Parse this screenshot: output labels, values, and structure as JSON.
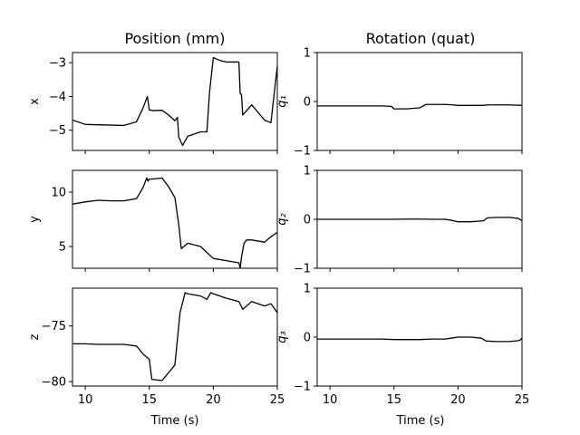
{
  "titles": {
    "left": "Position (mm)",
    "right": "Rotation (quat)"
  },
  "xlabel": "Time (s)",
  "line_color": "#000000",
  "chart_data": [
    {
      "type": "line",
      "panel": "x",
      "ylabel": "x",
      "xlim": [
        9,
        25
      ],
      "ylim": [
        -5.6,
        -2.7
      ],
      "xticks": [
        10,
        15,
        20,
        25
      ],
      "yticks": [
        -5,
        -4,
        -3
      ],
      "ytick_labels": [
        "−5",
        "−4",
        "−3"
      ],
      "show_xtick_labels": false,
      "x": [
        9,
        10,
        11,
        12,
        13,
        14,
        14.5,
        14.85,
        15,
        15.3,
        16,
        16.5,
        17,
        17.2,
        17.3,
        17.6,
        18,
        19,
        19.5,
        19.7,
        20,
        20.5,
        21,
        22,
        22.1,
        22.2,
        22.3,
        23,
        24,
        24.5,
        25
      ],
      "y": [
        -4.7,
        -4.83,
        -4.84,
        -4.85,
        -4.86,
        -4.75,
        -4.35,
        -4.0,
        -4.4,
        -4.42,
        -4.41,
        -4.55,
        -4.72,
        -4.62,
        -5.2,
        -5.45,
        -5.18,
        -5.05,
        -5.05,
        -3.9,
        -2.85,
        -2.93,
        -2.98,
        -2.98,
        -3.92,
        -3.94,
        -4.55,
        -4.25,
        -4.7,
        -4.78,
        -3.1
      ]
    },
    {
      "type": "line",
      "panel": "y",
      "ylabel": "y",
      "xlim": [
        9,
        25
      ],
      "ylim": [
        3,
        12
      ],
      "xticks": [
        10,
        15,
        20,
        25
      ],
      "yticks": [
        5,
        10
      ],
      "ytick_labels": [
        "5",
        "10"
      ],
      "show_xtick_labels": false,
      "x": [
        9,
        10,
        11,
        12,
        13,
        14,
        14.5,
        14.8,
        14.9,
        15,
        15.2,
        16,
        16.5,
        17,
        17.3,
        17.5,
        18,
        19,
        20,
        21,
        22,
        22.1,
        22.2,
        22.4,
        22.6,
        23,
        24,
        24.5,
        25
      ],
      "y": [
        8.9,
        9.1,
        9.25,
        9.2,
        9.2,
        9.4,
        10.4,
        11.3,
        11.0,
        11.2,
        11.2,
        11.3,
        10.5,
        9.5,
        7.0,
        4.8,
        5.3,
        5.0,
        3.9,
        3.7,
        3.5,
        3.0,
        4.0,
        5.3,
        5.6,
        5.6,
        5.4,
        5.9,
        6.3
      ]
    },
    {
      "type": "line",
      "panel": "z",
      "ylabel": "z",
      "xlim": [
        9,
        25
      ],
      "ylim": [
        -80.4,
        -71.6
      ],
      "xticks": [
        10,
        15,
        20,
        25
      ],
      "yticks": [
        -80,
        -75
      ],
      "ytick_labels": [
        "−80",
        "−75"
      ],
      "show_xtick_labels": true,
      "xtick_labels": [
        "10",
        "15",
        "20",
        "25"
      ],
      "x": [
        9,
        10,
        11,
        12,
        13,
        14,
        14.5,
        15,
        15.2,
        16,
        17,
        17.4,
        17.8,
        18,
        19,
        19.5,
        19.8,
        20,
        21,
        22,
        22.3,
        23,
        24,
        24.5,
        25
      ],
      "y": [
        -76.6,
        -76.6,
        -76.65,
        -76.65,
        -76.65,
        -76.8,
        -77.5,
        -78.0,
        -79.8,
        -79.9,
        -78.5,
        -73.8,
        -72.0,
        -72.1,
        -72.3,
        -72.6,
        -72.0,
        -72.1,
        -72.5,
        -72.8,
        -73.5,
        -72.8,
        -73.2,
        -73.0,
        -73.8
      ]
    },
    {
      "type": "line",
      "panel": "q1",
      "ylabel": "q₁",
      "xlim": [
        9,
        25
      ],
      "ylim": [
        -1,
        1
      ],
      "xticks": [
        10,
        15,
        20,
        25
      ],
      "yticks": [
        -1,
        0,
        1
      ],
      "ytick_labels": [
        "−1",
        "0",
        "1"
      ],
      "show_xtick_labels": false,
      "x": [
        9,
        10,
        12,
        14,
        14.8,
        15,
        16,
        17,
        17.5,
        18,
        19,
        19.6,
        20,
        21,
        22,
        22.3,
        23,
        24,
        25
      ],
      "y": [
        -0.09,
        -0.09,
        -0.09,
        -0.09,
        -0.1,
        -0.15,
        -0.15,
        -0.13,
        -0.06,
        -0.06,
        -0.06,
        -0.07,
        -0.08,
        -0.08,
        -0.08,
        -0.07,
        -0.07,
        -0.07,
        -0.08
      ]
    },
    {
      "type": "line",
      "panel": "q2",
      "ylabel": "q₂",
      "xlim": [
        9,
        25
      ],
      "ylim": [
        -1,
        1
      ],
      "xticks": [
        10,
        15,
        20,
        25
      ],
      "yticks": [
        -1,
        0,
        1
      ],
      "ytick_labels": [
        "−1",
        "0",
        "1"
      ],
      "show_xtick_labels": false,
      "x": [
        9,
        10,
        12,
        14,
        15,
        16,
        17,
        18,
        19,
        19.5,
        20,
        21,
        22,
        22.3,
        23,
        24,
        24.7,
        25
      ],
      "y": [
        0,
        0,
        0,
        0,
        0,
        0.005,
        0.005,
        0,
        0,
        -0.02,
        -0.05,
        -0.05,
        -0.03,
        0.03,
        0.04,
        0.04,
        0.02,
        -0.03
      ]
    },
    {
      "type": "line",
      "panel": "q3",
      "ylabel": "q₃",
      "xlim": [
        9,
        25
      ],
      "ylim": [
        -1,
        1
      ],
      "xticks": [
        10,
        15,
        20,
        25
      ],
      "yticks": [
        -1,
        0,
        1
      ],
      "ytick_labels": [
        "−1",
        "0",
        "1"
      ],
      "show_xtick_labels": true,
      "xtick_labels": [
        "10",
        "15",
        "20",
        "25"
      ],
      "x": [
        9,
        10,
        12,
        14,
        15,
        16,
        17,
        18,
        19,
        19.5,
        20,
        21,
        21.8,
        22.2,
        23,
        24,
        24.8,
        25
      ],
      "y": [
        -0.04,
        -0.04,
        -0.04,
        -0.04,
        -0.05,
        -0.05,
        -0.05,
        -0.04,
        -0.04,
        -0.02,
        0.0,
        0.0,
        -0.02,
        -0.08,
        -0.09,
        -0.09,
        -0.07,
        -0.02
      ]
    }
  ]
}
